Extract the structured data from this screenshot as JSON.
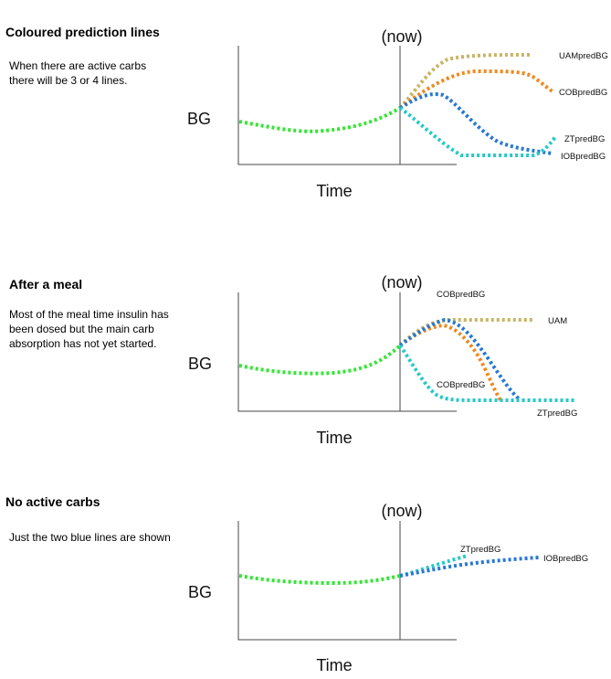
{
  "colors": {
    "history": "#33e633",
    "uam": "#c8b464",
    "cob": "#f0881e",
    "zt": "#28c8c8",
    "iob": "#2878d2"
  },
  "panels": [
    {
      "title": "Coloured prediction lines",
      "description": "When there are active carbs there will be 3 or 4 lines.",
      "now_label": "(now)",
      "y_axis_label": "BG",
      "x_axis_label": "Time",
      "line_labels": {
        "uam": "UAMpredBG",
        "cob": "COBpredBG",
        "zt": "ZTpredBG",
        "iob": "IOBpredBG"
      }
    },
    {
      "title": "After a meal",
      "description": "Most of the meal time insulin has been dosed but the main carb absorption has not yet started.",
      "now_label": "(now)",
      "y_axis_label": "BG",
      "x_axis_label": "Time",
      "line_labels": {
        "cob_top": "COBpredBG",
        "uam": "UAM",
        "cob_mid": "COBpredBG",
        "zt": "ZTpredBG"
      }
    },
    {
      "title": "No active carbs",
      "description": "Just the two blue lines are shown",
      "now_label": "(now)",
      "y_axis_label": "BG",
      "x_axis_label": "Time",
      "line_labels": {
        "zt": "ZTpredBG",
        "iob": "IOBpredBG"
      }
    }
  ]
}
